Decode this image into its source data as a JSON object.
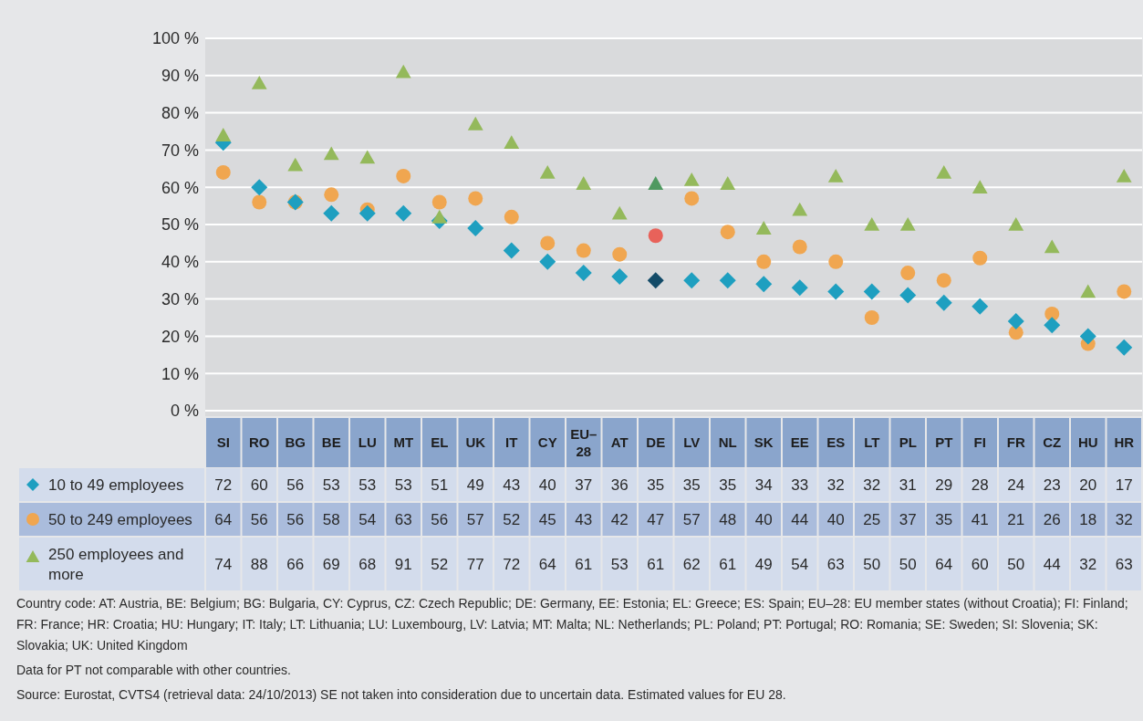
{
  "chart_data": {
    "type": "scatter",
    "categories": [
      "SI",
      "RO",
      "BG",
      "BE",
      "LU",
      "MT",
      "EL",
      "UK",
      "IT",
      "CY",
      "EU–28",
      "AT",
      "DE",
      "LV",
      "NL",
      "SK",
      "EE",
      "ES",
      "LT",
      "PL",
      "PT",
      "FI",
      "FR",
      "CZ",
      "HU",
      "HR"
    ],
    "series": [
      {
        "name": "10 to 49 employees",
        "marker": "diamond",
        "color": "#1e9fc0",
        "colors": [
          "#1e9fc0",
          "#1e9fc0",
          "#1e9fc0",
          "#1e9fc0",
          "#1e9fc0",
          "#1e9fc0",
          "#1e9fc0",
          "#1e9fc0",
          "#1e9fc0",
          "#1e9fc0",
          "#1e9fc0",
          "#1e9fc0",
          "#134b68",
          "#1e9fc0",
          "#1e9fc0",
          "#1e9fc0",
          "#1e9fc0",
          "#1e9fc0",
          "#1e9fc0",
          "#1e9fc0",
          "#1e9fc0",
          "#1e9fc0",
          "#1e9fc0",
          "#1e9fc0",
          "#1e9fc0",
          "#1e9fc0"
        ],
        "values": [
          72,
          60,
          56,
          53,
          53,
          53,
          51,
          49,
          43,
          40,
          37,
          36,
          35,
          35,
          35,
          34,
          33,
          32,
          32,
          31,
          29,
          28,
          24,
          23,
          20,
          17
        ]
      },
      {
        "name": "50 to 249 employees",
        "marker": "circle",
        "color": "#f0a650",
        "colors": [
          "#f0a650",
          "#f0a650",
          "#f0a650",
          "#f0a650",
          "#f0a650",
          "#f0a650",
          "#f0a650",
          "#f0a650",
          "#f0a650",
          "#f0a650",
          "#f0a650",
          "#f0a650",
          "#e8625a",
          "#f0a650",
          "#f0a650",
          "#f0a650",
          "#f0a650",
          "#f0a650",
          "#f0a650",
          "#f0a650",
          "#f0a650",
          "#f0a650",
          "#f0a650",
          "#f0a650",
          "#f0a650",
          "#f0a650"
        ],
        "values": [
          64,
          56,
          56,
          58,
          54,
          63,
          56,
          57,
          52,
          45,
          43,
          42,
          47,
          57,
          48,
          40,
          44,
          40,
          25,
          37,
          35,
          41,
          21,
          26,
          18,
          32
        ]
      },
      {
        "name": "250 employees and more",
        "marker": "triangle",
        "color": "#94b95b",
        "colors": [
          "#94b95b",
          "#94b95b",
          "#94b95b",
          "#94b95b",
          "#94b95b",
          "#94b95b",
          "#94b95b",
          "#94b95b",
          "#94b95b",
          "#94b95b",
          "#94b95b",
          "#94b95b",
          "#4f9960",
          "#94b95b",
          "#94b95b",
          "#94b95b",
          "#94b95b",
          "#94b95b",
          "#94b95b",
          "#94b95b",
          "#94b95b",
          "#94b95b",
          "#94b95b",
          "#94b95b",
          "#94b95b",
          "#94b95b"
        ],
        "values": [
          74,
          88,
          66,
          69,
          68,
          91,
          52,
          77,
          72,
          64,
          61,
          53,
          61,
          62,
          61,
          49,
          54,
          63,
          50,
          50,
          64,
          60,
          50,
          44,
          32,
          63
        ]
      }
    ],
    "ylim": [
      0,
      100
    ],
    "yticks": [
      {
        "value": 0,
        "label": "0 %"
      },
      {
        "value": 10,
        "label": "10 %"
      },
      {
        "value": 20,
        "label": "20 %"
      },
      {
        "value": 30,
        "label": "30 %"
      },
      {
        "value": 40,
        "label": "40 %"
      },
      {
        "value": 50,
        "label": "50 %"
      },
      {
        "value": 60,
        "label": "60 %"
      },
      {
        "value": 70,
        "label": "70 %"
      },
      {
        "value": 80,
        "label": "80 %"
      },
      {
        "value": 90,
        "label": "90 %"
      },
      {
        "value": 100,
        "label": "100 %"
      }
    ],
    "grid": "y",
    "legend": "bottom left",
    "data_labels": true,
    "annotations": [
      "Country code: AT: Austria, BE: Belgium; BG: Bulgaria, CY: Cyprus, CZ: Czech Republic; DE: Germany, EE: Estonia; EL: Greece; ES: Spain; EU–28: EU member states (without Croatia); FI: Finland; FR: France; HR: Croatia; HU: Hungary; IT: Italy; LT: Lithuania; LU: Luxembourg, LV: Latvia; MT: Malta; NL: Netherlands; PL: Poland; PT: Portugal; RO: Romania; SE: Sweden; SI: Slovenia; SK: Slovakia; UK: United Kingdom",
      "Data for PT not comparable with other countries.",
      "Source: Eurostat, CVTS4 (retrieval data: 24/10/2013) SE not taken into consideration due to uncertain data. Estimated values for EU 28."
    ]
  }
}
